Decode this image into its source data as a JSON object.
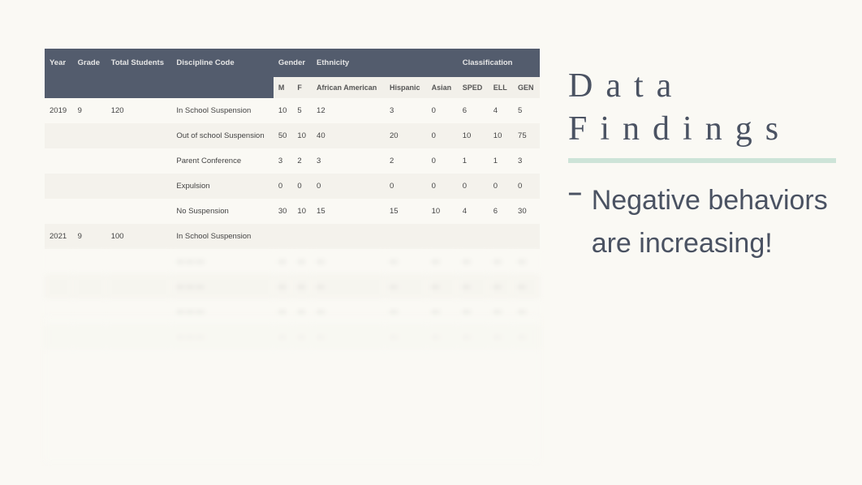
{
  "title_line1": "Data",
  "title_line2": "Findings",
  "bullet": "Negative behaviors are increasing!",
  "underline_color": "#cde4d8",
  "header_bg": "#535c6d",
  "header_text": "#e6e6e6",
  "page_bg": "#faf9f4",
  "stripe_bg": "#f4f2ec",
  "title_color": "#4a5262",
  "table": {
    "group_headers": [
      "Year",
      "Grade",
      "Total Students",
      "Discipline Code",
      "Gender",
      "Ethnicity",
      "Classification"
    ],
    "sub_headers": [
      "M",
      "F",
      "African American",
      "Hispanic",
      "Asian",
      "SPED",
      "ELL",
      "GEN"
    ],
    "rows": [
      {
        "year": "2019",
        "grade": "9",
        "total": "120",
        "code": "In School Suspension",
        "cells": [
          "10",
          "5",
          "12",
          "3",
          "0",
          "6",
          "4",
          "5"
        ],
        "striped": false,
        "blur": false,
        "showYear": true
      },
      {
        "year": "",
        "grade": "",
        "total": "",
        "code": "Out of school Suspension",
        "cells": [
          "50",
          "10",
          "40",
          "20",
          "0",
          "10",
          "10",
          "75"
        ],
        "striped": true,
        "blur": false,
        "showYear": false
      },
      {
        "year": "",
        "grade": "",
        "total": "",
        "code": "Parent Conference",
        "cells": [
          "3",
          "2",
          "3",
          "2",
          "0",
          "1",
          "1",
          "3"
        ],
        "striped": false,
        "blur": false,
        "showYear": false
      },
      {
        "year": "",
        "grade": "",
        "total": "",
        "code": "Expulsion",
        "cells": [
          "0",
          "0",
          "0",
          "0",
          "0",
          "0",
          "0",
          "0"
        ],
        "striped": true,
        "blur": false,
        "showYear": false
      },
      {
        "year": "",
        "grade": "",
        "total": "",
        "code": "No Suspension",
        "cells": [
          "30",
          "10",
          "15",
          "15",
          "10",
          "4",
          "6",
          "30"
        ],
        "striped": false,
        "blur": false,
        "showYear": false
      },
      {
        "year": "2021",
        "grade": "9",
        "total": "100",
        "code": "In School Suspension",
        "cells": [
          "",
          "",
          "",
          "",
          "",
          "",
          "",
          ""
        ],
        "striped": true,
        "blur": false,
        "showYear": true
      },
      {
        "year": "",
        "grade": "",
        "total": "",
        "code": "— — —",
        "cells": [
          "—",
          "—",
          "—",
          "—",
          "—",
          "—",
          "—",
          "—"
        ],
        "striped": false,
        "blur": true,
        "showYear": false
      },
      {
        "year": "",
        "grade": "",
        "total": "",
        "code": "— — —",
        "cells": [
          "—",
          "—",
          "—",
          "—",
          "—",
          "—",
          "—",
          "—"
        ],
        "striped": true,
        "blur": true,
        "showYear": false
      },
      {
        "year": "",
        "grade": "",
        "total": "",
        "code": "— — —",
        "cells": [
          "—",
          "—",
          "—",
          "—",
          "—",
          "—",
          "—",
          "—"
        ],
        "striped": false,
        "blur": true,
        "showYear": false
      },
      {
        "year": "",
        "grade": "",
        "total": "",
        "code": "— — —",
        "cells": [
          "—",
          "—",
          "—",
          "—",
          "—",
          "—",
          "—",
          "—"
        ],
        "striped": true,
        "blur": true,
        "showYear": false
      }
    ]
  }
}
